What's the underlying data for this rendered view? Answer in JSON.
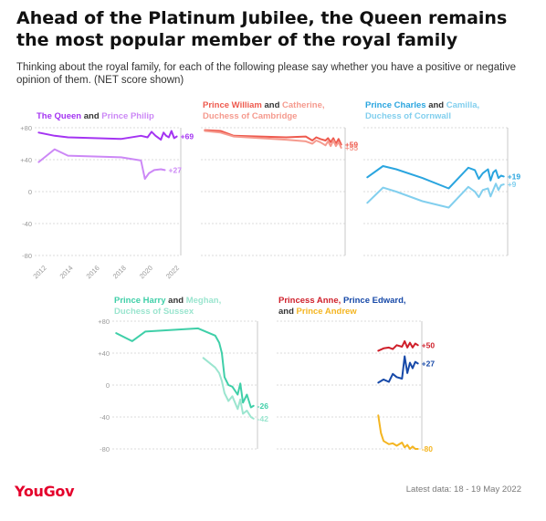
{
  "title": "Ahead of the Platinum Jubilee, the Queen remains the most popular member of the royal family",
  "subtitle": "Thinking about the royal family, for each of the following please say whether you have a positive or negative opinion of them. (NET score shown)",
  "footer": {
    "logo": "YouGov",
    "latest": "Latest data: 18 - 19 May 2022"
  },
  "colors": {
    "queen": "#a434f2",
    "philip": "#cc88f6",
    "william": "#ee5a4e",
    "catherine": "#f59a8e",
    "charles": "#2aa5df",
    "camilla": "#82cfee",
    "harry": "#3fcfa8",
    "meghan": "#9be5cf",
    "anne": "#cf1f2a",
    "edward": "#1749a8",
    "andrew": "#f4b521"
  },
  "panel_titles": {
    "p1": {
      "a": "The Queen",
      "and": "and",
      "b": "Prince Philip"
    },
    "p2": {
      "a": "Prince William",
      "and": "and",
      "b": "Catherine,",
      "b2": "Duchess of Cambridge"
    },
    "p3": {
      "a": "Prince Charles",
      "and": "and",
      "b": "Camilla,",
      "b2": "Duchess of Cornwall"
    },
    "p4": {
      "a": "Prince Harry",
      "and": "and",
      "b": "Meghan,",
      "b2": "Duchess of Sussex"
    },
    "p5": {
      "a": "Princess Anne,",
      "b": "Prince Edward,",
      "and": "and",
      "c": "Prince Andrew"
    }
  },
  "chart_data": [
    {
      "type": "line",
      "x_tick_labels": [
        "2012",
        "2014",
        "2016",
        "2018",
        "2020",
        "2022"
      ],
      "y_ticks": [
        80,
        40,
        0,
        -40,
        -80
      ],
      "y_tick_labels": [
        "+80",
        "+40",
        "0",
        "-40",
        "-80"
      ],
      "ylim": [
        -80,
        80
      ],
      "xlim": [
        2011.5,
        2022.5
      ],
      "grid": true,
      "series": [
        {
          "name": "The Queen",
          "color_key": "queen",
          "end_label": "+69",
          "x": [
            2011.8,
            2013,
            2014,
            2016,
            2018,
            2019.5,
            2020,
            2020.3,
            2020.6,
            2021,
            2021.2,
            2021.4,
            2021.6,
            2021.8,
            2022,
            2022.2
          ],
          "y": [
            74,
            70,
            68,
            67,
            66,
            70,
            68,
            75,
            70,
            65,
            74,
            70,
            68,
            76,
            67,
            69
          ]
        },
        {
          "name": "Prince Philip",
          "color_key": "philip",
          "end_label": "+27",
          "x": [
            2011.8,
            2013,
            2014,
            2016,
            2018,
            2019.5,
            2019.8,
            2020.1,
            2020.5,
            2021,
            2021.3
          ],
          "y": [
            37,
            53,
            45,
            44,
            43,
            39,
            16,
            23,
            27,
            28,
            27
          ]
        }
      ]
    },
    {
      "type": "line",
      "xlim": [
        2011.5,
        2022.5
      ],
      "ylim": [
        -80,
        80
      ],
      "series": [
        {
          "name": "Prince William",
          "color_key": "william",
          "end_label": "+59",
          "x": [
            2011.8,
            2013,
            2014,
            2016,
            2018,
            2019.5,
            2020,
            2020.3,
            2020.6,
            2021,
            2021.2,
            2021.4,
            2021.6,
            2021.8,
            2022,
            2022.2
          ],
          "y": [
            77,
            76,
            70,
            69,
            68,
            69,
            64,
            68,
            66,
            64,
            67,
            62,
            67,
            60,
            66,
            59
          ]
        },
        {
          "name": "Catherine, Duchess of Cambridge",
          "color_key": "catherine",
          "end_label": "+55",
          "x": [
            2011.8,
            2013,
            2014,
            2016,
            2018,
            2019.5,
            2020,
            2020.3,
            2020.6,
            2021,
            2021.2,
            2021.4,
            2021.6,
            2021.8,
            2022,
            2022.2
          ],
          "y": [
            76,
            74,
            69,
            67,
            65,
            63,
            60,
            64,
            62,
            58,
            63,
            57,
            64,
            57,
            62,
            55
          ]
        }
      ]
    },
    {
      "type": "line",
      "xlim": [
        2011.5,
        2022.5
      ],
      "ylim": [
        -80,
        80
      ],
      "series": [
        {
          "name": "Prince Charles",
          "color_key": "charles",
          "end_label": "+19",
          "x": [
            2011.8,
            2013,
            2014,
            2016,
            2018,
            2019.5,
            2020,
            2020.3,
            2020.6,
            2021,
            2021.2,
            2021.4,
            2021.6,
            2021.8,
            2022,
            2022.2
          ],
          "y": [
            18,
            32,
            28,
            17,
            4,
            30,
            27,
            16,
            23,
            28,
            14,
            24,
            27,
            17,
            20,
            19
          ]
        },
        {
          "name": "Camilla, Duchess of Cornwall",
          "color_key": "camilla",
          "end_label": "+9",
          "x": [
            2011.8,
            2013,
            2014,
            2016,
            2018,
            2019.5,
            2020,
            2020.3,
            2020.6,
            2021,
            2021.2,
            2021.4,
            2021.6,
            2021.8,
            2022,
            2022.2
          ],
          "y": [
            -14,
            5,
            0,
            -12,
            -20,
            6,
            0,
            -7,
            2,
            4,
            -6,
            2,
            10,
            2,
            8,
            9
          ]
        }
      ]
    },
    {
      "type": "line",
      "xlim": [
        2011.5,
        2022.5
      ],
      "ylim": [
        -80,
        80
      ],
      "y_ticks": [
        80,
        40,
        0,
        -40,
        -80
      ],
      "y_tick_labels": [
        "+80",
        "+40",
        "0",
        "-40",
        "-80"
      ],
      "series": [
        {
          "name": "Prince Harry",
          "color_key": "harry",
          "end_label": "-26",
          "x": [
            2011.8,
            2013,
            2014,
            2016,
            2018,
            2019.3,
            2019.6,
            2019.8,
            2020,
            2020.3,
            2020.6,
            2021,
            2021.2,
            2021.4,
            2021.7,
            2022,
            2022.2
          ],
          "y": [
            65,
            55,
            67,
            69,
            71,
            62,
            53,
            40,
            10,
            0,
            -2,
            -12,
            2,
            -22,
            -12,
            -28,
            -26
          ]
        },
        {
          "name": "Meghan, Duchess of Sussex",
          "color_key": "meghan",
          "end_label": "-42",
          "x": [
            2018.4,
            2019.3,
            2019.6,
            2019.8,
            2020,
            2020.3,
            2020.6,
            2021,
            2021.2,
            2021.4,
            2021.7,
            2022,
            2022.2
          ],
          "y": [
            34,
            22,
            15,
            5,
            -10,
            -20,
            -14,
            -30,
            -18,
            -36,
            -32,
            -40,
            -42
          ]
        }
      ]
    },
    {
      "type": "line",
      "xlim": [
        2011.5,
        2022.5
      ],
      "ylim": [
        -80,
        80
      ],
      "series": [
        {
          "name": "Princess Anne",
          "color_key": "anne",
          "end_label": "+50",
          "x": [
            2019.2,
            2019.6,
            2020,
            2020.3,
            2020.6,
            2021,
            2021.2,
            2021.4,
            2021.6,
            2021.8,
            2022,
            2022.2
          ],
          "y": [
            43,
            46,
            47,
            45,
            50,
            48,
            55,
            47,
            53,
            47,
            52,
            50
          ]
        },
        {
          "name": "Prince Edward",
          "color_key": "edward",
          "end_label": "+27",
          "x": [
            2019.2,
            2019.6,
            2020,
            2020.3,
            2020.6,
            2021,
            2021.2,
            2021.4,
            2021.6,
            2021.8,
            2022,
            2022.2
          ],
          "y": [
            3,
            7,
            4,
            14,
            10,
            8,
            36,
            15,
            28,
            21,
            29,
            27
          ]
        },
        {
          "name": "Prince Andrew",
          "color_key": "andrew",
          "end_label": "-80",
          "x": [
            2019.2,
            2019.4,
            2019.6,
            2020,
            2020.3,
            2020.6,
            2021,
            2021.2,
            2021.4,
            2021.6,
            2021.8,
            2022,
            2022.2
          ],
          "y": [
            -38,
            -60,
            -70,
            -74,
            -73,
            -76,
            -72,
            -78,
            -75,
            -80,
            -77,
            -80,
            -80
          ]
        }
      ]
    }
  ]
}
